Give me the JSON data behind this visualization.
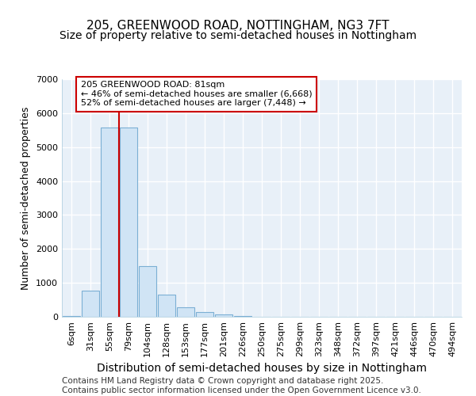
{
  "title1": "205, GREENWOOD ROAD, NOTTINGHAM, NG3 7FT",
  "title2": "Size of property relative to semi-detached houses in Nottingham",
  "xlabel": "Distribution of semi-detached houses by size in Nottingham",
  "ylabel": "Number of semi-detached properties",
  "categories": [
    "6sqm",
    "31sqm",
    "55sqm",
    "79sqm",
    "104sqm",
    "128sqm",
    "153sqm",
    "177sqm",
    "201sqm",
    "226sqm",
    "250sqm",
    "275sqm",
    "299sqm",
    "323sqm",
    "348sqm",
    "372sqm",
    "397sqm",
    "421sqm",
    "446sqm",
    "470sqm",
    "494sqm"
  ],
  "values": [
    30,
    780,
    5580,
    5580,
    1490,
    660,
    270,
    130,
    60,
    30,
    10,
    3,
    1,
    0,
    0,
    0,
    0,
    0,
    0,
    0,
    0
  ],
  "bar_color": "#d0e4f5",
  "bar_edge_color": "#7bafd4",
  "red_line_x": 3,
  "annotation_text": "205 GREENWOOD ROAD: 81sqm\n← 46% of semi-detached houses are smaller (6,668)\n52% of semi-detached houses are larger (7,448) →",
  "annotation_box_color": "#ffffff",
  "annotation_text_color": "#000000",
  "annotation_border_color": "#cc0000",
  "red_line_color": "#cc0000",
  "ylim": [
    0,
    7000
  ],
  "yticks": [
    0,
    1000,
    2000,
    3000,
    4000,
    5000,
    6000,
    7000
  ],
  "background_color": "#ffffff",
  "plot_bg_color": "#e8f0f8",
  "grid_color": "#ffffff",
  "footer": "Contains HM Land Registry data © Crown copyright and database right 2025.\nContains public sector information licensed under the Open Government Licence v3.0.",
  "title1_fontsize": 11,
  "title2_fontsize": 10,
  "xlabel_fontsize": 10,
  "ylabel_fontsize": 9,
  "tick_fontsize": 8,
  "footer_fontsize": 7.5,
  "annot_fontsize": 8
}
